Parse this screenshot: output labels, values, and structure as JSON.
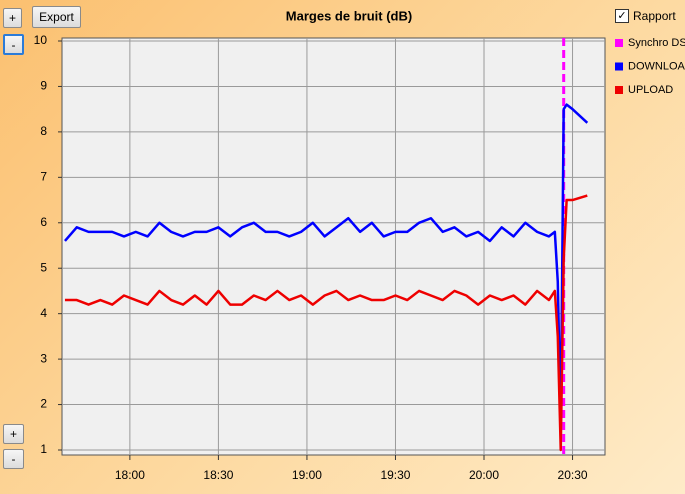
{
  "ui": {
    "zoom_in_top": "+",
    "zoom_out_top": "-",
    "export": "Export",
    "report": "Rapport",
    "zoom_in_bottom": "+",
    "zoom_out_bottom": "-"
  },
  "chart_data": {
    "type": "line",
    "title": "Marges de bruit (dB)",
    "x": [
      "17:38",
      "17:42",
      "17:46",
      "17:50",
      "17:54",
      "17:58",
      "18:02",
      "18:06",
      "18:10",
      "18:14",
      "18:18",
      "18:22",
      "18:26",
      "18:30",
      "18:34",
      "18:38",
      "18:42",
      "18:46",
      "18:50",
      "18:54",
      "18:58",
      "19:02",
      "19:06",
      "19:10",
      "19:14",
      "19:18",
      "19:22",
      "19:26",
      "19:30",
      "19:34",
      "19:38",
      "19:42",
      "19:46",
      "19:50",
      "19:54",
      "19:58",
      "20:02",
      "20:06",
      "20:10",
      "20:14",
      "20:18",
      "20:22",
      "20:24",
      "20:25",
      "20:26",
      "20:27",
      "20:28",
      "20:30",
      "20:35"
    ],
    "series": [
      {
        "name": "DOWNLOAD",
        "color": "#0000ff",
        "values": [
          5.6,
          5.9,
          5.8,
          5.8,
          5.8,
          5.7,
          5.8,
          5.7,
          6.0,
          5.8,
          5.7,
          5.8,
          5.8,
          5.9,
          5.7,
          5.9,
          6.0,
          5.8,
          5.8,
          5.7,
          5.8,
          6.0,
          5.7,
          5.9,
          6.1,
          5.8,
          6.0,
          5.7,
          5.8,
          5.8,
          6.0,
          6.1,
          5.8,
          5.9,
          5.7,
          5.8,
          5.6,
          5.9,
          5.7,
          6.0,
          5.8,
          5.7,
          5.8,
          4.7,
          1.5,
          8.5,
          8.6,
          8.5,
          8.2
        ]
      },
      {
        "name": "UPLOAD",
        "color": "#ee0000",
        "values": [
          4.3,
          4.3,
          4.2,
          4.3,
          4.2,
          4.4,
          4.3,
          4.2,
          4.5,
          4.3,
          4.2,
          4.4,
          4.2,
          4.5,
          4.2,
          4.2,
          4.4,
          4.3,
          4.5,
          4.3,
          4.4,
          4.2,
          4.4,
          4.5,
          4.3,
          4.4,
          4.3,
          4.3,
          4.4,
          4.3,
          4.5,
          4.4,
          4.3,
          4.5,
          4.4,
          4.2,
          4.4,
          4.3,
          4.4,
          4.2,
          4.5,
          4.3,
          4.5,
          3.5,
          1.0,
          5.2,
          6.5,
          6.5,
          6.6
        ]
      }
    ],
    "markers": [
      {
        "name": "Synchro DSL",
        "color": "#ff00ff",
        "x": "20:27"
      }
    ],
    "xlim": [
      "17:37",
      "20:41"
    ],
    "xticks": [
      "18:00",
      "18:30",
      "19:00",
      "19:30",
      "20:00",
      "20:30"
    ],
    "ylim": [
      1,
      10
    ],
    "yticks": [
      1,
      2,
      3,
      4,
      5,
      6,
      7,
      8,
      9,
      10
    ],
    "grid": true
  }
}
